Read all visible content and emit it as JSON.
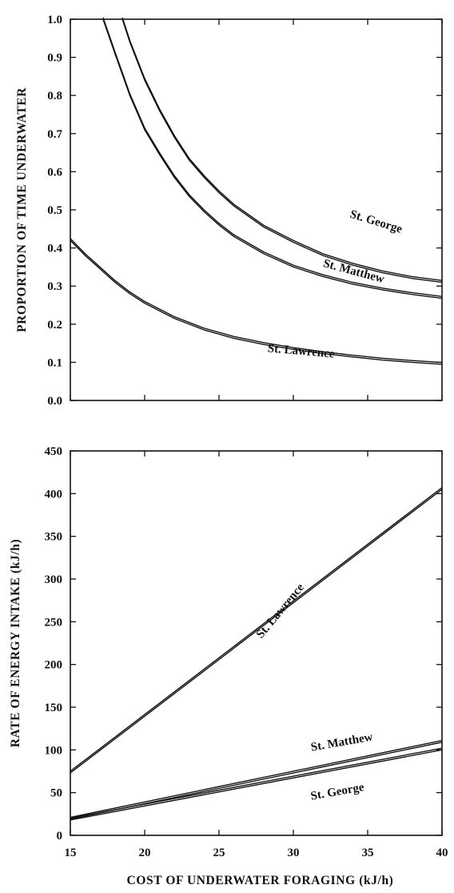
{
  "chart_data": [
    {
      "type": "line",
      "xlabel": "",
      "ylabel": "PROPORTION OF TIME UNDERWATER",
      "xlim": [
        15,
        40
      ],
      "ylim": [
        0,
        1
      ],
      "xticks": [
        15,
        20,
        25,
        30,
        35,
        40
      ],
      "yticks": [
        0.0,
        0.1,
        0.2,
        0.3,
        0.4,
        0.5,
        0.6,
        0.7,
        0.8,
        0.9,
        1.0
      ],
      "ytick_labels": [
        "0.0",
        "0.1",
        "0.2",
        "0.3",
        "0.4",
        "0.5",
        "0.6",
        "0.7",
        "0.8",
        "0.9",
        "1.0"
      ],
      "xtick_labels": [
        "",
        "",
        "",
        "",
        "",
        ""
      ],
      "series": [
        {
          "name": "St. George",
          "x": [
            18.5,
            19,
            20,
            21,
            22,
            23,
            24,
            25,
            26,
            28,
            30,
            32,
            34,
            36,
            38,
            40
          ],
          "y": [
            1.0,
            0.94,
            0.84,
            0.76,
            0.69,
            0.63,
            0.585,
            0.545,
            0.51,
            0.455,
            0.415,
            0.38,
            0.355,
            0.335,
            0.32,
            0.31
          ]
        },
        {
          "name": "St. Matthew",
          "x": [
            17.2,
            18,
            19,
            20,
            21,
            22,
            23,
            24,
            25,
            26,
            28,
            30,
            32,
            34,
            36,
            38,
            40
          ],
          "y": [
            1.0,
            0.91,
            0.8,
            0.71,
            0.645,
            0.585,
            0.535,
            0.495,
            0.46,
            0.43,
            0.385,
            0.35,
            0.325,
            0.305,
            0.29,
            0.278,
            0.268
          ]
        },
        {
          "name": "St. Lawrence",
          "x": [
            15,
            16,
            17,
            18,
            19,
            20,
            22,
            24,
            26,
            28,
            30,
            32,
            34,
            36,
            38,
            40
          ],
          "y": [
            0.42,
            0.38,
            0.345,
            0.31,
            0.28,
            0.255,
            0.215,
            0.185,
            0.163,
            0.147,
            0.134,
            0.123,
            0.114,
            0.106,
            0.1,
            0.095
          ]
        }
      ],
      "labels": [
        {
          "text": "St. George",
          "x": 35.5,
          "y": 0.46,
          "rotate": 17
        },
        {
          "text": "St. Matthew",
          "x": 34.0,
          "y": 0.33,
          "rotate": 15
        },
        {
          "text": "St. Lawrence",
          "x": 30.5,
          "y": 0.12,
          "rotate": 5
        }
      ],
      "grid": false
    },
    {
      "type": "line",
      "xlabel": "COST OF UNDERWATER FORAGING (kJ/h)",
      "ylabel": "RATE OF ENERGY INTAKE (kJ/h)",
      "xlim": [
        15,
        40
      ],
      "ylim": [
        0,
        450
      ],
      "xticks": [
        15,
        20,
        25,
        30,
        35,
        40
      ],
      "xtick_labels": [
        "15",
        "20",
        "25",
        "30",
        "35",
        "40"
      ],
      "yticks": [
        0,
        50,
        100,
        150,
        200,
        250,
        300,
        350,
        400,
        450
      ],
      "ytick_labels": [
        "0",
        "50",
        "100",
        "150",
        "200",
        "250",
        "300",
        "350",
        "400",
        "450"
      ],
      "series": [
        {
          "name": "St. Lawrence",
          "x": [
            15,
            40
          ],
          "y": [
            73,
            405
          ]
        },
        {
          "name": "St. Matthew",
          "x": [
            15,
            40
          ],
          "y": [
            19,
            109
          ]
        },
        {
          "name": "St. George",
          "x": [
            15,
            40
          ],
          "y": [
            18,
            100
          ]
        }
      ],
      "labels": [
        {
          "text": "St. Lawrence",
          "x": 29.3,
          "y": 260,
          "rotate": -50
        },
        {
          "text": "St. Matthew",
          "x": 33.3,
          "y": 105,
          "rotate": -10
        },
        {
          "text": "St. George",
          "x": 33.0,
          "y": 47,
          "rotate": -10
        }
      ],
      "grid": false
    }
  ]
}
